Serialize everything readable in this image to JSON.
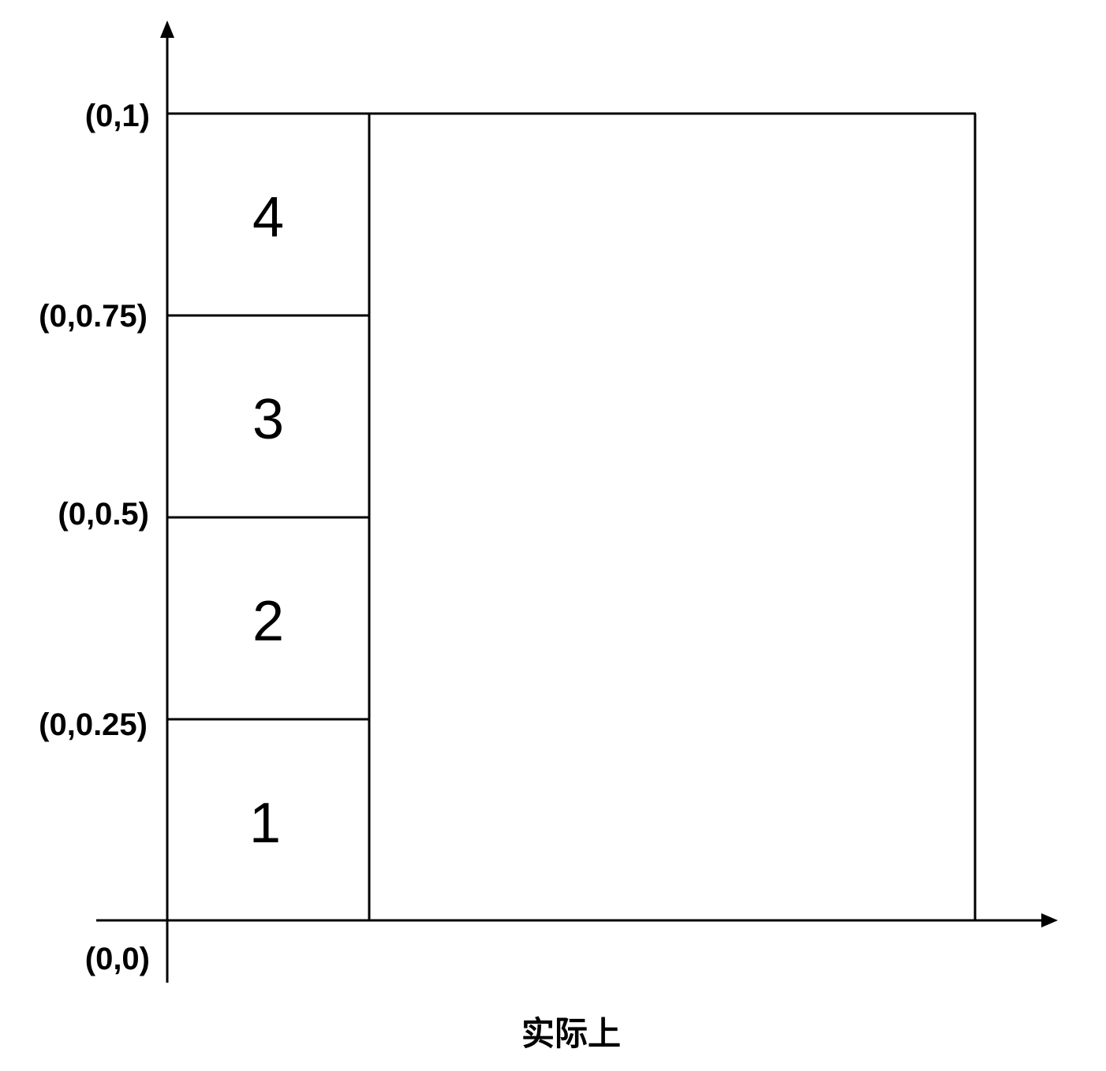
{
  "axis_labels": {
    "origin": "(0,0)",
    "quarter": "(0,0.25)",
    "half": "(0,0.5)",
    "three_quarter": "(0,0.75)",
    "top": "(0,1)"
  },
  "cells": [
    {
      "number": "1"
    },
    {
      "number": "2"
    },
    {
      "number": "3"
    },
    {
      "number": "4"
    }
  ],
  "caption": "实际上",
  "colors": {
    "stroke": "#000000",
    "background": "#ffffff"
  }
}
